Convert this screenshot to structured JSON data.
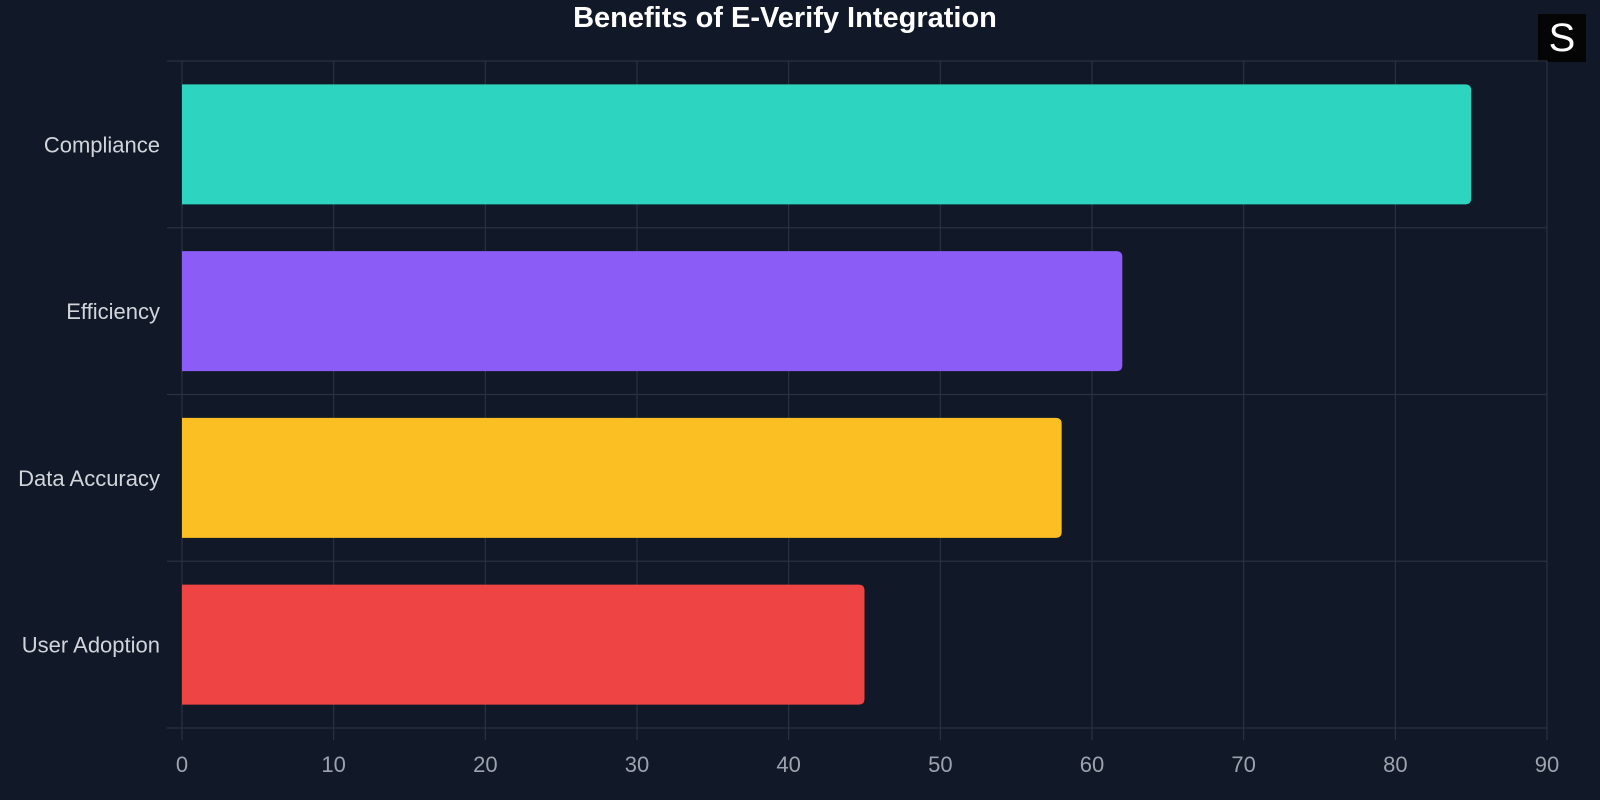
{
  "chart_data": {
    "type": "bar",
    "orientation": "horizontal",
    "title": "Benefits of E-Verify Integration",
    "categories": [
      "Compliance",
      "Efficiency",
      "Data Accuracy",
      "User Adoption"
    ],
    "values": [
      85,
      62,
      58,
      45
    ],
    "colors": [
      "#2dd4bf",
      "#8b5cf6",
      "#fbbf24",
      "#ef4444"
    ],
    "xlim": [
      0,
      90
    ],
    "xticks": [
      "0",
      "10",
      "20",
      "30",
      "40",
      "50",
      "60",
      "70",
      "80",
      "90"
    ],
    "grid": true,
    "xlabel": "",
    "ylabel": ""
  },
  "logo": {
    "text": "S"
  },
  "colors": {
    "background": "#111827",
    "grid": "#2a3242",
    "tick_text": "#9ca3af",
    "label_text": "#d1d5db"
  }
}
